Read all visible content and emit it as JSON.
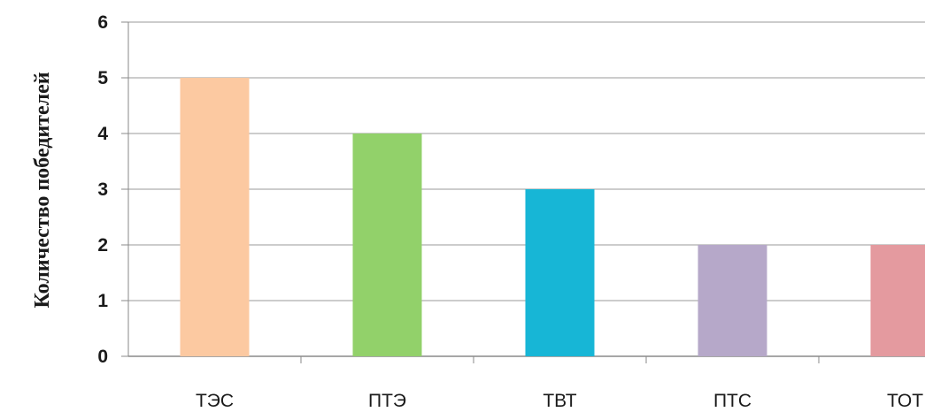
{
  "chart_data": {
    "type": "bar",
    "title": "",
    "xlabel": "",
    "ylabel": "Количество победителей",
    "categories": [
      "ТЭС",
      "ПТЭ",
      "ТВТ",
      "ПТС",
      "ТОТ"
    ],
    "values": [
      5,
      4,
      3,
      2,
      2
    ],
    "colors": [
      "#fcc9a1",
      "#92d16a",
      "#17b6d6",
      "#b6a8c9",
      "#e49a9f"
    ],
    "ylim": [
      0,
      6
    ],
    "yticks": [
      0,
      1,
      2,
      3,
      4,
      5,
      6
    ],
    "grid": true,
    "legend": "none"
  }
}
